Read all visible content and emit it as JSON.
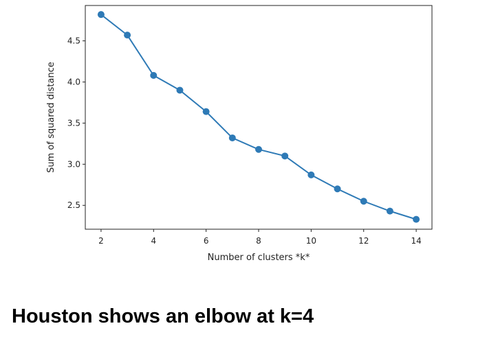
{
  "chart_data": {
    "type": "line",
    "xlabel": "Number of clusters *k*",
    "ylabel": "Sum of squared distance",
    "x_ticks": [
      "2",
      "4",
      "6",
      "8",
      "10",
      "12",
      "14"
    ],
    "y_ticks": [
      "2.5",
      "3.0",
      "3.5",
      "4.0",
      "4.5"
    ],
    "xlim": [
      1.4,
      14.6
    ],
    "ylim": [
      2.21,
      4.93
    ],
    "grid": false,
    "marker": "circle",
    "line_color": "#2e7ab6",
    "series": [
      {
        "x": [
          2,
          3,
          4,
          5,
          6,
          7,
          8,
          9,
          10,
          11,
          12,
          13,
          14
        ],
        "values": [
          4.82,
          4.57,
          4.08,
          3.9,
          3.64,
          3.32,
          3.18,
          3.1,
          2.87,
          2.7,
          2.55,
          2.43,
          2.33
        ]
      }
    ]
  },
  "caption": "Houston shows an elbow at k=4"
}
